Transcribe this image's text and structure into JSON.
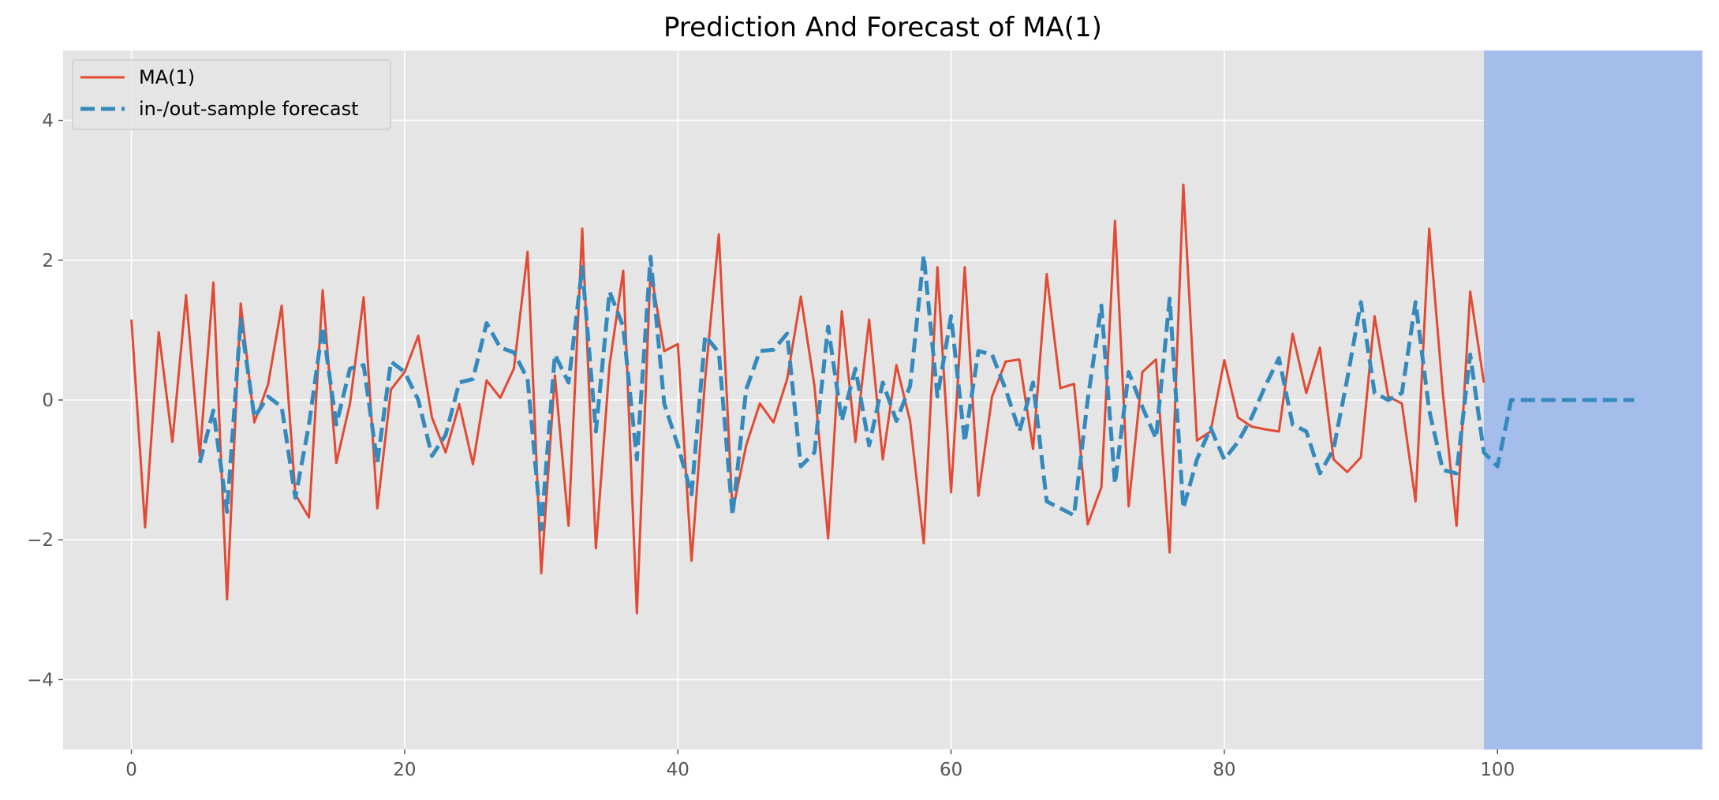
{
  "chart_data": {
    "type": "line",
    "title": "Prediction And Forecast of MA(1)",
    "xlabel": "",
    "ylabel": "",
    "xlim": [
      -5,
      115
    ],
    "ylim": [
      -5,
      5
    ],
    "xticks": [
      0,
      20,
      40,
      60,
      80,
      100
    ],
    "yticks": [
      -4,
      -2,
      0,
      2,
      4
    ],
    "xtick_labels": [
      "0",
      "20",
      "40",
      "60",
      "80",
      "100"
    ],
    "ytick_labels": [
      "−4",
      "−2",
      "0",
      "2",
      "4"
    ],
    "grid": true,
    "legend_position": "top-left",
    "background_color": "#E5E5E5",
    "forecast_region": {
      "x_start": 99,
      "x_end": 115,
      "color": "#A4BDEA"
    },
    "series": [
      {
        "name": "MA(1)",
        "color": "#E24A33",
        "style": "solid",
        "x_start": 0,
        "values": [
          1.15,
          -1.82,
          0.97,
          -0.6,
          1.5,
          -0.8,
          1.68,
          -2.85,
          1.38,
          -0.32,
          0.22,
          1.35,
          -1.35,
          -1.68,
          1.57,
          -0.9,
          -0.05,
          1.47,
          -1.55,
          0.15,
          0.4,
          0.92,
          -0.25,
          -0.75,
          -0.06,
          -0.92,
          0.28,
          0.03,
          0.45,
          2.12,
          -2.48,
          0.35,
          -1.8,
          2.45,
          -2.12,
          0.5,
          1.85,
          -3.05,
          1.87,
          0.7,
          0.8,
          -2.3,
          0.3,
          2.37,
          -1.6,
          -0.65,
          -0.05,
          -0.32,
          0.3,
          1.48,
          0.2,
          -1.98,
          1.27,
          -0.6,
          1.15,
          -0.85,
          0.5,
          -0.3,
          -2.05,
          1.9,
          -1.32,
          1.9,
          -1.37,
          0.05,
          0.55,
          0.58,
          -0.7,
          1.8,
          0.17,
          0.23,
          -1.78,
          -1.25,
          2.56,
          -1.52,
          0.4,
          0.58,
          -2.18,
          3.08,
          -0.58,
          -0.45,
          0.57,
          -0.25,
          -0.38,
          -0.42,
          -0.45,
          0.95,
          0.1,
          0.75,
          -0.85,
          -1.03,
          -0.82,
          1.2,
          0.05,
          -0.05,
          -1.45,
          2.45,
          0.1,
          -1.8,
          1.55,
          0.25
        ]
      },
      {
        "name": "in-/out-sample forecast",
        "color": "#348ABD",
        "style": "dashed",
        "x_start": 5,
        "values": [
          -0.9,
          -0.15,
          -1.6,
          1.15,
          -0.25,
          0.05,
          -0.1,
          -1.4,
          -0.35,
          1.05,
          -0.35,
          0.45,
          0.5,
          -0.9,
          0.55,
          0.4,
          0.0,
          -0.8,
          -0.5,
          0.25,
          0.3,
          1.1,
          0.75,
          0.68,
          0.3,
          -1.85,
          0.65,
          0.25,
          1.9,
          -0.45,
          1.55,
          1.05,
          -0.85,
          2.05,
          -0.05,
          -0.65,
          -1.35,
          0.92,
          0.68,
          -1.65,
          0.15,
          0.7,
          0.72,
          0.95,
          -0.95,
          -0.75,
          1.05,
          -0.3,
          0.45,
          -0.65,
          0.25,
          -0.3,
          0.2,
          2.07,
          0.05,
          1.2,
          -0.6,
          0.7,
          0.65,
          0.15,
          -0.45,
          0.25,
          -1.45,
          -1.55,
          -1.65,
          0.0,
          1.35,
          -1.2,
          0.4,
          -0.1,
          -0.55,
          1.45,
          -1.55,
          -0.85,
          -0.4,
          -0.85,
          -0.6,
          -0.25,
          0.2,
          0.6,
          -0.35,
          -0.45,
          -1.05,
          -0.7,
          0.3,
          1.4,
          0.1,
          0.0,
          0.1,
          1.4,
          -0.15,
          -1.0,
          -1.05,
          0.65,
          -0.75,
          -0.95,
          0.0,
          0.0,
          0.0,
          0.0,
          0.0,
          0.0,
          0.0,
          0.0,
          0.0,
          0.0
        ]
      }
    ]
  }
}
